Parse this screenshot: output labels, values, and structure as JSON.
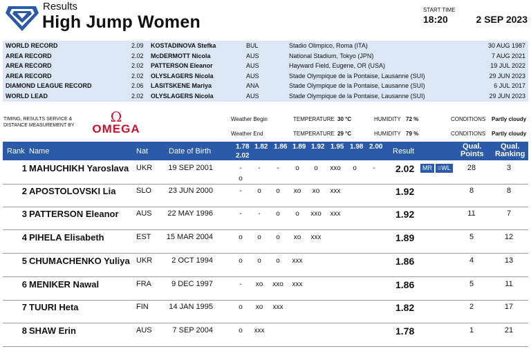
{
  "header": {
    "sup_title": "Results",
    "title": "High Jump Women",
    "start_time_label": "START TIME",
    "start_time": "18:20",
    "date": "2 SEP 2023"
  },
  "records": [
    {
      "label": "WORLD RECORD",
      "mark": "2.09",
      "name": "KOSTADINOVA Stefka",
      "nat": "BUL",
      "venue": "Stadio Olimpico, Roma (ITA)",
      "date": "30 AUG 1987"
    },
    {
      "label": "AREA RECORD",
      "mark": "2.02",
      "name": "McDERMOTT Nicola",
      "nat": "AUS",
      "venue": "National Stadium, Tokyo (JPN)",
      "date": "7 AUG 2021"
    },
    {
      "label": "AREA RECORD",
      "mark": "2.02",
      "name": "PATTERSON Eleanor",
      "nat": "AUS",
      "venue": "Hayward Field, Eugene, OR (USA)",
      "date": "19 JUL 2022"
    },
    {
      "label": "AREA RECORD",
      "mark": "2.02",
      "name": "OLYSLAGERS Nicola",
      "nat": "AUS",
      "venue": "Stade Olympique de la Pontaise, Lausanne (SUI)",
      "date": "29 JUN 2023"
    },
    {
      "label": "DIAMOND LEAGUE RECORD",
      "mark": "2.06",
      "name": "LASITSKENE Mariya",
      "nat": "ANA",
      "venue": "Stade Olympique de la Pontaise, Lausanne (SUI)",
      "date": "6 JUL 2017"
    },
    {
      "label": "WORLD LEAD",
      "mark": "2.02",
      "name": "OLYSLAGERS Nicola",
      "nat": "AUS",
      "venue": "Stade Olympique de la Pontaise, Lausanne (SUI)",
      "date": "29 JUN 2023"
    }
  ],
  "timing": {
    "text_line1": "TIMING, RESULTS SERVICE &",
    "text_line2": "DISTANCE MEASUREMENT BY",
    "brand_symbol": "Ω",
    "brand_name": "OMEGA",
    "brand_color": "#c8102e"
  },
  "weather": {
    "begin": {
      "label": "Weather Begin",
      "temp_label": "TEMPERATURE",
      "temp": "30 °C",
      "hum_label": "HUMIDITY",
      "hum": "72 %",
      "cond_label": "CONDITIONS",
      "cond": "Partly cloudy"
    },
    "end": {
      "label": "Weather End",
      "temp_label": "TEMPERATURE",
      "temp": "29 °C",
      "hum_label": "HUMIDITY",
      "hum": "79 %",
      "cond_label": "CONDITIONS",
      "cond": "Partly cloudy"
    }
  },
  "table": {
    "header_color": "#2b5aa8",
    "columns": {
      "rank": "Rank",
      "name": "Name",
      "nat": "Nat",
      "dob": "Date of Birth",
      "result": "Result",
      "qual_points": [
        "Qual.",
        "Points"
      ],
      "qual_ranking": [
        "Qual.",
        "Ranking"
      ]
    },
    "heights": [
      "1.78",
      "1.82",
      "1.86",
      "1.89",
      "1.92",
      "1.95",
      "1.98",
      "2.00",
      "2.02"
    ],
    "rows": [
      {
        "rank": "1",
        "name": "MAHUCHIKH Yaroslava",
        "nat": "UKR",
        "dob": "19 SEP 2001",
        "attempts": [
          "-",
          "-",
          "-",
          "o",
          "o",
          "xxo",
          "o",
          "-",
          "o"
        ],
        "result": "2.02",
        "badges": [
          "MR",
          "=WL"
        ],
        "qp": "28",
        "qr": "3"
      },
      {
        "rank": "2",
        "name": "APOSTOLOVSKI Lia",
        "nat": "SLO",
        "dob": "23 JUN 2000",
        "attempts": [
          "-",
          "o",
          "o",
          "xo",
          "xo",
          "xxx"
        ],
        "result": "1.92",
        "badges": [],
        "qp": "8",
        "qr": "8"
      },
      {
        "rank": "3",
        "name": "PATTERSON Eleanor",
        "nat": "AUS",
        "dob": "22 MAY 1996",
        "attempts": [
          "-",
          "-",
          "o",
          "o",
          "xxo",
          "xxx"
        ],
        "result": "1.92",
        "badges": [],
        "qp": "11",
        "qr": "7"
      },
      {
        "rank": "4",
        "name": "PIHELA Elisabeth",
        "nat": "EST",
        "dob": "15 MAR 2004",
        "attempts": [
          "o",
          "o",
          "o",
          "xo",
          "xxx"
        ],
        "result": "1.89",
        "badges": [],
        "qp": "5",
        "qr": "12"
      },
      {
        "rank": "5",
        "name": "CHUMACHENKO Yuliya",
        "nat": "UKR",
        "dob": "2 OCT 1994",
        "attempts": [
          "o",
          "o",
          "o",
          "xxx"
        ],
        "result": "1.86",
        "badges": [],
        "qp": "4",
        "qr": "13"
      },
      {
        "rank": "6",
        "name": "MENIKER Nawal",
        "nat": "FRA",
        "dob": "9 DEC 1997",
        "attempts": [
          "-",
          "xo",
          "xxo",
          "xxx"
        ],
        "result": "1.86",
        "badges": [],
        "qp": "5",
        "qr": "11"
      },
      {
        "rank": "7",
        "name": "TUURI Heta",
        "nat": "FIN",
        "dob": "14 JAN 1995",
        "attempts": [
          "o",
          "xo",
          "xxx"
        ],
        "result": "1.82",
        "badges": [],
        "qp": "2",
        "qr": "17"
      },
      {
        "rank": "8",
        "name": "SHAW Erin",
        "nat": "AUS",
        "dob": "7 SEP 2004",
        "attempts": [
          "o",
          "xxx"
        ],
        "result": "1.78",
        "badges": [],
        "qp": "1",
        "qr": "21"
      }
    ]
  }
}
